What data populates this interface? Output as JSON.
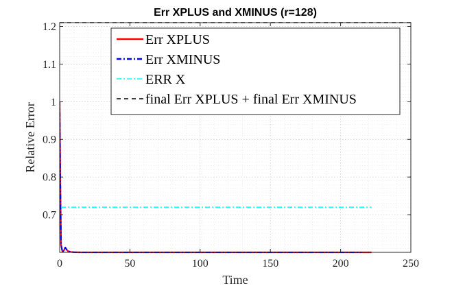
{
  "chart_data": {
    "type": "line",
    "title": "Err XPLUS and XMINUS (r=128)",
    "xlabel": "Time",
    "ylabel": "Relative Error",
    "xlim": [
      0,
      250
    ],
    "ylim": [
      0.6,
      1.21
    ],
    "x_ticks": [
      0,
      50,
      100,
      150,
      200,
      250
    ],
    "y_ticks": [
      0.7,
      0.8,
      0.9,
      1,
      1.1,
      1.2
    ],
    "x_tick_labels": [
      "0",
      "50",
      "100",
      "150",
      "200",
      "250"
    ],
    "y_tick_labels": [
      "0.7",
      "0.8",
      "0.9",
      "1",
      "1.1",
      "1.2"
    ],
    "grid": true,
    "minor_grid": true,
    "legend_position": "top-right",
    "series": [
      {
        "name": "Err XPLUS",
        "color": "#ff0000",
        "style": "solid",
        "x": [
          0,
          0.5,
          1,
          2,
          3,
          4,
          5,
          6,
          8,
          10,
          15,
          20,
          30,
          50,
          100,
          150,
          200,
          215,
          222
        ],
        "y": [
          1.0,
          0.78,
          0.62,
          0.601,
          0.605,
          0.613,
          0.607,
          0.603,
          0.601,
          0.6005,
          0.6,
          0.6,
          0.6,
          0.6,
          0.6,
          0.6,
          0.6,
          0.6,
          0.6
        ]
      },
      {
        "name": "Err XMINUS",
        "color": "#0000ff",
        "style": "dashdot",
        "x": [
          0,
          0.5,
          1,
          2,
          3,
          4,
          5,
          6,
          8,
          10,
          15,
          20,
          30,
          50,
          100,
          150,
          200,
          215
        ],
        "y": [
          1.0,
          0.78,
          0.62,
          0.601,
          0.605,
          0.613,
          0.607,
          0.603,
          0.601,
          0.6005,
          0.6,
          0.6,
          0.6,
          0.6,
          0.6,
          0.6,
          0.6,
          0.6
        ]
      },
      {
        "name": "ERR X",
        "color": "#00ffff",
        "style": "dashdot",
        "x": [
          1,
          222
        ],
        "y": [
          0.72,
          0.72
        ]
      },
      {
        "name": "final Err XPLUS + final Err XMINUS",
        "color": "#000000",
        "style": "dashed",
        "x": [
          0,
          250
        ],
        "y": [
          1.21,
          1.21
        ]
      }
    ]
  }
}
